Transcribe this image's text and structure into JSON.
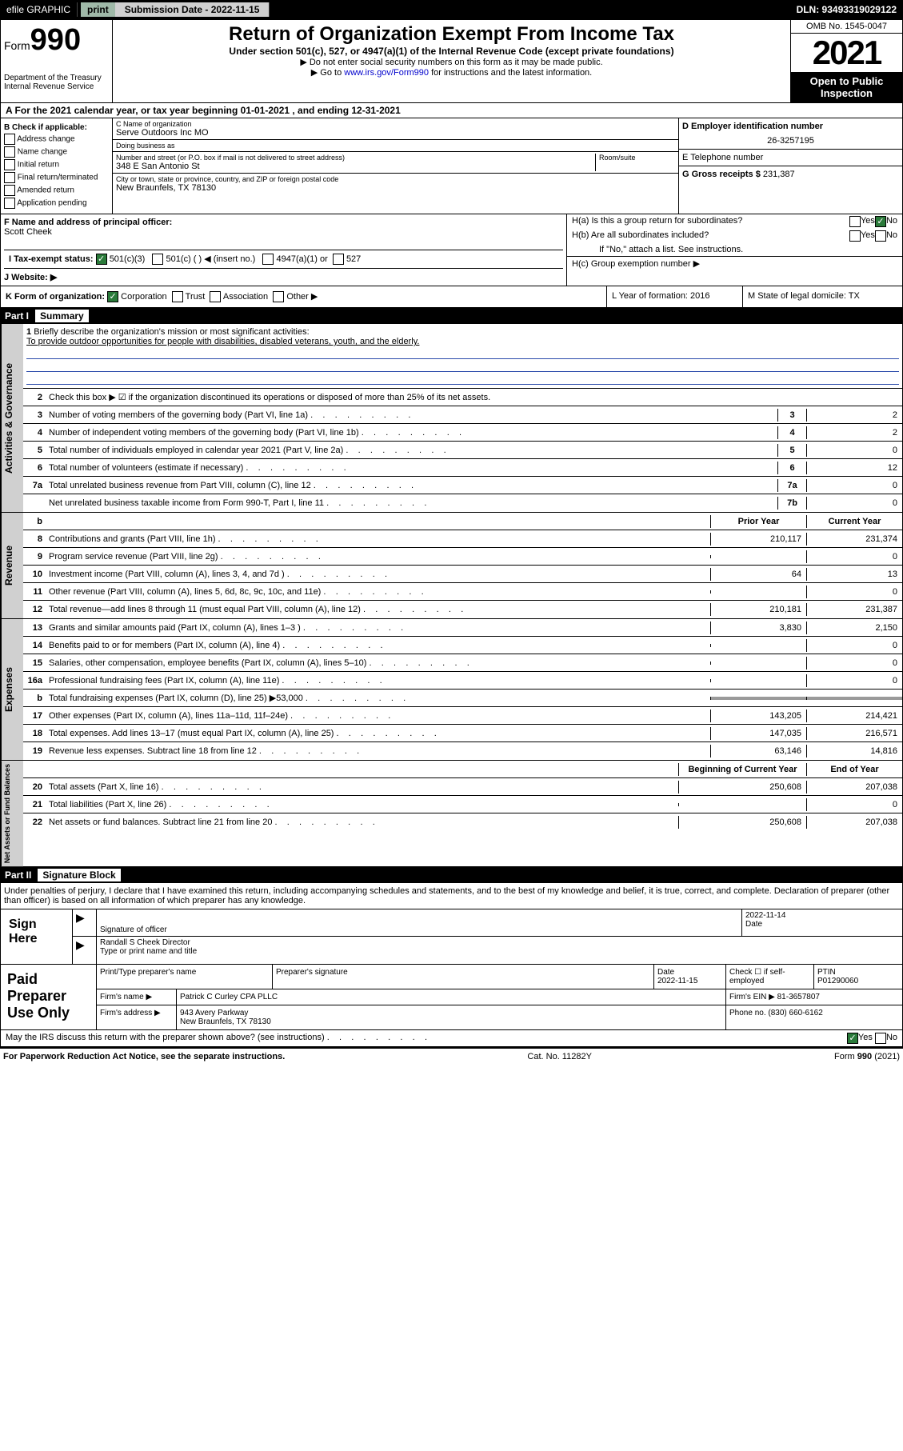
{
  "topbar": {
    "efile": "efile GRAPHIC",
    "print": "print",
    "subm_label": "Submission Date - 2022-11-15",
    "dln": "DLN: 93493319029122"
  },
  "header": {
    "form_prefix": "Form",
    "form_num": "990",
    "dept": "Department of the Treasury\nInternal Revenue Service",
    "title": "Return of Organization Exempt From Income Tax",
    "sub": "Under section 501(c), 527, or 4947(a)(1) of the Internal Revenue Code (except private foundations)",
    "note1": "▶ Do not enter social security numbers on this form as it may be made public.",
    "note2_pre": "▶ Go to ",
    "note2_link": "www.irs.gov/Form990",
    "note2_post": " for instructions and the latest information.",
    "omb": "OMB No. 1545-0047",
    "year": "2021",
    "inspect": "Open to Public Inspection"
  },
  "rowA": "A For the 2021 calendar year, or tax year beginning 01-01-2021   , and ending 12-31-2021",
  "colB": {
    "hdr": "B Check if applicable:",
    "items": [
      "Address change",
      "Name change",
      "Initial return",
      "Final return/terminated",
      "Amended return",
      "Application pending"
    ]
  },
  "colC": {
    "name_lbl": "C Name of organization",
    "name": "Serve Outdoors Inc MO",
    "dba_lbl": "Doing business as",
    "street_lbl": "Number and street (or P.O. box if mail is not delivered to street address)",
    "room_lbl": "Room/suite",
    "street": "348 E San Antonio St",
    "city_lbl": "City or town, state or province, country, and ZIP or foreign postal code",
    "city": "New Braunfels, TX  78130"
  },
  "colDE": {
    "d_lbl": "D Employer identification number",
    "d_val": "26-3257195",
    "e_lbl": "E Telephone number",
    "g_lbl": "G Gross receipts $",
    "g_val": "231,387"
  },
  "rowF": {
    "lbl": "F Name and address of principal officer:",
    "val": "Scott Cheek"
  },
  "rowH": {
    "ha": "H(a)  Is this a group return for subordinates?",
    "hb": "H(b)  Are all subordinates included?",
    "hb_note": "If \"No,\" attach a list. See instructions.",
    "hc": "H(c)  Group exemption number ▶",
    "yes": "Yes",
    "no": "No"
  },
  "rowI": {
    "lbl": "I   Tax-exempt status:",
    "opts": [
      "501(c)(3)",
      "501(c) (  ) ◀ (insert no.)",
      "4947(a)(1) or",
      "527"
    ]
  },
  "rowJ": "J   Website: ▶",
  "rowK": {
    "lbl": "K Form of organization:",
    "opts": [
      "Corporation",
      "Trust",
      "Association",
      "Other ▶"
    ]
  },
  "rowL": "L Year of formation: 2016",
  "rowM": "M State of legal domicile: TX",
  "part1": {
    "hdr": "Part I",
    "ttl": "Summary",
    "q1": "Briefly describe the organization's mission or most significant activities:",
    "mission": "To provide outdoor opportunities for people with disabilities, disabled veterans, youth, and the elderly.",
    "q2": "Check this box ▶ ☑ if the organization discontinued its operations or disposed of more than 25% of its net assets."
  },
  "gov_rows": [
    {
      "n": "3",
      "label": "Number of voting members of the governing body (Part VI, line 1a)",
      "box": "3",
      "v": "2"
    },
    {
      "n": "4",
      "label": "Number of independent voting members of the governing body (Part VI, line 1b)",
      "box": "4",
      "v": "2"
    },
    {
      "n": "5",
      "label": "Total number of individuals employed in calendar year 2021 (Part V, line 2a)",
      "box": "5",
      "v": "0"
    },
    {
      "n": "6",
      "label": "Total number of volunteers (estimate if necessary)",
      "box": "6",
      "v": "12"
    },
    {
      "n": "7a",
      "label": "Total unrelated business revenue from Part VIII, column (C), line 12",
      "box": "7a",
      "v": "0"
    },
    {
      "n": "",
      "label": "Net unrelated business taxable income from Form 990-T, Part I, line 11",
      "box": "7b",
      "v": "0"
    }
  ],
  "two_col_hdr": {
    "b": "b",
    "prior": "Prior Year",
    "current": "Current Year"
  },
  "rev_rows": [
    {
      "n": "8",
      "label": "Contributions and grants (Part VIII, line 1h)",
      "p": "210,117",
      "c": "231,374"
    },
    {
      "n": "9",
      "label": "Program service revenue (Part VIII, line 2g)",
      "p": "",
      "c": "0"
    },
    {
      "n": "10",
      "label": "Investment income (Part VIII, column (A), lines 3, 4, and 7d )",
      "p": "64",
      "c": "13"
    },
    {
      "n": "11",
      "label": "Other revenue (Part VIII, column (A), lines 5, 6d, 8c, 9c, 10c, and 11e)",
      "p": "",
      "c": "0"
    },
    {
      "n": "12",
      "label": "Total revenue—add lines 8 through 11 (must equal Part VIII, column (A), line 12)",
      "p": "210,181",
      "c": "231,387"
    }
  ],
  "exp_rows": [
    {
      "n": "13",
      "label": "Grants and similar amounts paid (Part IX, column (A), lines 1–3 )",
      "p": "3,830",
      "c": "2,150"
    },
    {
      "n": "14",
      "label": "Benefits paid to or for members (Part IX, column (A), line 4)",
      "p": "",
      "c": "0"
    },
    {
      "n": "15",
      "label": "Salaries, other compensation, employee benefits (Part IX, column (A), lines 5–10)",
      "p": "",
      "c": "0"
    },
    {
      "n": "16a",
      "label": "Professional fundraising fees (Part IX, column (A), line 11e)",
      "p": "",
      "c": "0"
    },
    {
      "n": "b",
      "label": "Total fundraising expenses (Part IX, column (D), line 25) ▶53,000",
      "shade": true
    },
    {
      "n": "17",
      "label": "Other expenses (Part IX, column (A), lines 11a–11d, 11f–24e)",
      "p": "143,205",
      "c": "214,421"
    },
    {
      "n": "18",
      "label": "Total expenses. Add lines 13–17 (must equal Part IX, column (A), line 25)",
      "p": "147,035",
      "c": "216,571"
    },
    {
      "n": "19",
      "label": "Revenue less expenses. Subtract line 18 from line 12",
      "p": "63,146",
      "c": "14,816"
    }
  ],
  "net_hdr": {
    "begin": "Beginning of Current Year",
    "end": "End of Year"
  },
  "net_rows": [
    {
      "n": "20",
      "label": "Total assets (Part X, line 16)",
      "p": "250,608",
      "c": "207,038"
    },
    {
      "n": "21",
      "label": "Total liabilities (Part X, line 26)",
      "p": "",
      "c": "0"
    },
    {
      "n": "22",
      "label": "Net assets or fund balances. Subtract line 21 from line 20",
      "p": "250,608",
      "c": "207,038"
    }
  ],
  "part2": {
    "hdr": "Part II",
    "ttl": "Signature Block",
    "intro": "Under penalties of perjury, I declare that I have examined this return, including accompanying schedules and statements, and to the best of my knowledge and belief, it is true, correct, and complete. Declaration of preparer (other than officer) is based on all information of which preparer has any knowledge."
  },
  "sign": {
    "left": "Sign Here",
    "sig_lbl": "Signature of officer",
    "date": "2022-11-14",
    "date_lbl": "Date",
    "name": "Randall S Cheek  Director",
    "name_lbl": "Type or print name and title"
  },
  "prep": {
    "left": "Paid Preparer Use Only",
    "c1": "Print/Type preparer's name",
    "c2": "Preparer's signature",
    "c3": "Date",
    "c3v": "2022-11-15",
    "c4": "Check ☐ if self-employed",
    "c5": "PTIN",
    "c5v": "P01290060",
    "firm_lbl": "Firm's name    ▶",
    "firm": "Patrick C Curley CPA PLLC",
    "ein_lbl": "Firm's EIN ▶",
    "ein": "81-3657807",
    "addr_lbl": "Firm's address ▶",
    "addr": "943 Avery Parkway",
    "addr2": "New Braunfels, TX  78130",
    "phone_lbl": "Phone no.",
    "phone": "(830) 660-6162"
  },
  "irs_discuss": "May the IRS discuss this return with the preparer shown above? (see instructions)",
  "footer": {
    "left": "For Paperwork Reduction Act Notice, see the separate instructions.",
    "mid": "Cat. No. 11282Y",
    "right": "Form 990 (2021)"
  }
}
